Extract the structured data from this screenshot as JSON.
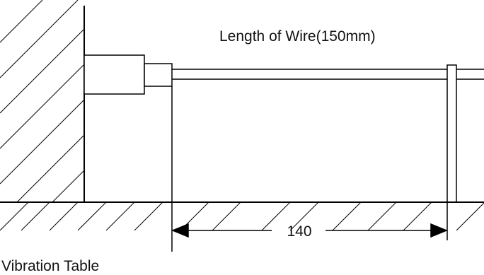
{
  "diagram": {
    "wire_length_label": "Length of Wire(150mm)",
    "dimension_label": "140",
    "table_label": "Vibration Table"
  },
  "colors": {
    "stroke": "#000000",
    "background": "#ffffff",
    "text": "#111111"
  }
}
